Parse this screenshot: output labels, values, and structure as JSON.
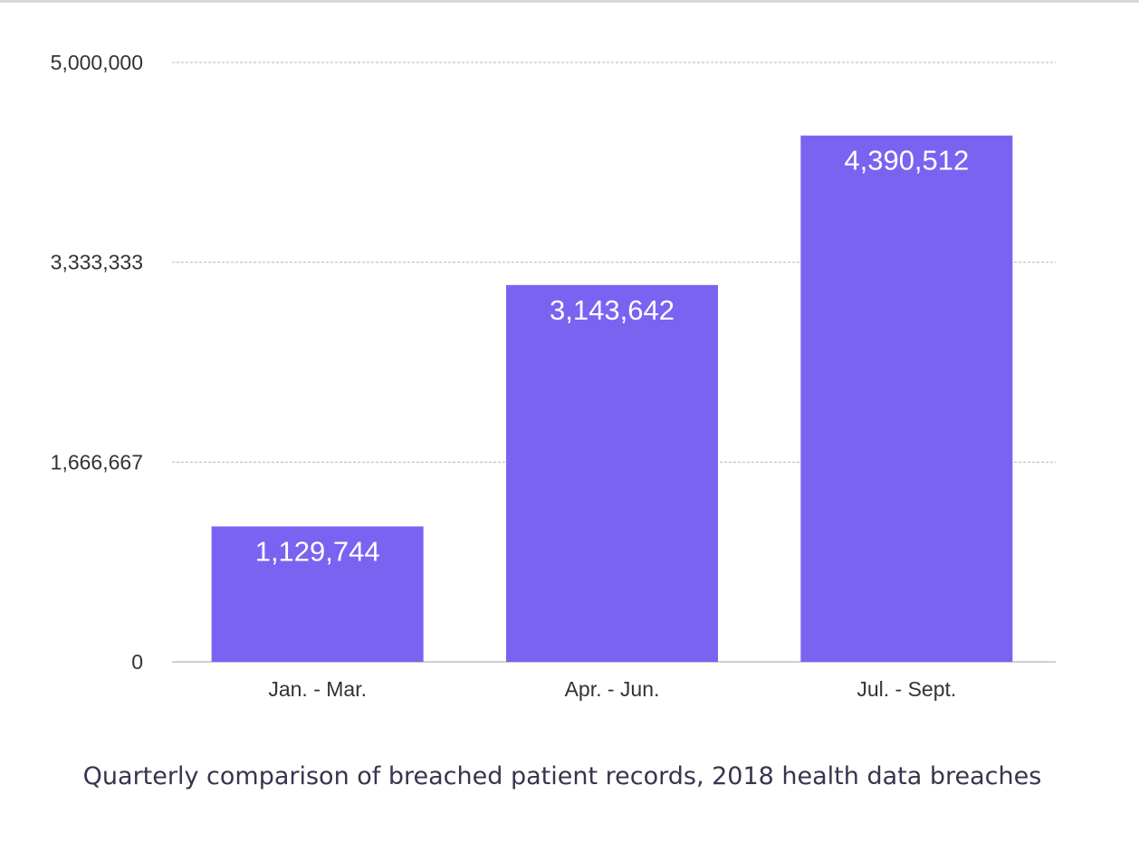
{
  "caption": "Quarterly comparison of breached patient records, 2018 health data breaches",
  "colors": {
    "bar": "#7a63f1",
    "bar_label": "#ffffff",
    "grid": "#b7b7b7",
    "axis_text": "#333333",
    "caption": "#35354f"
  },
  "chart_data": {
    "type": "bar",
    "title": "",
    "xlabel": "",
    "ylabel": "",
    "categories": [
      "Jan. - Mar.",
      "Apr. - Jun.",
      "Jul. - Sept."
    ],
    "values": [
      1129744,
      3143642,
      4390512
    ],
    "value_labels": [
      "1,129,744",
      "3,143,642",
      "4,390,512"
    ],
    "ylim": [
      0,
      5000000
    ],
    "yticks": [
      0,
      1666667,
      3333333,
      5000000
    ],
    "ytick_labels": [
      "0",
      "1,666,667",
      "3,333,333",
      "5,000,000"
    ],
    "grid": true,
    "grid_style": "dashed",
    "legend": "none"
  }
}
